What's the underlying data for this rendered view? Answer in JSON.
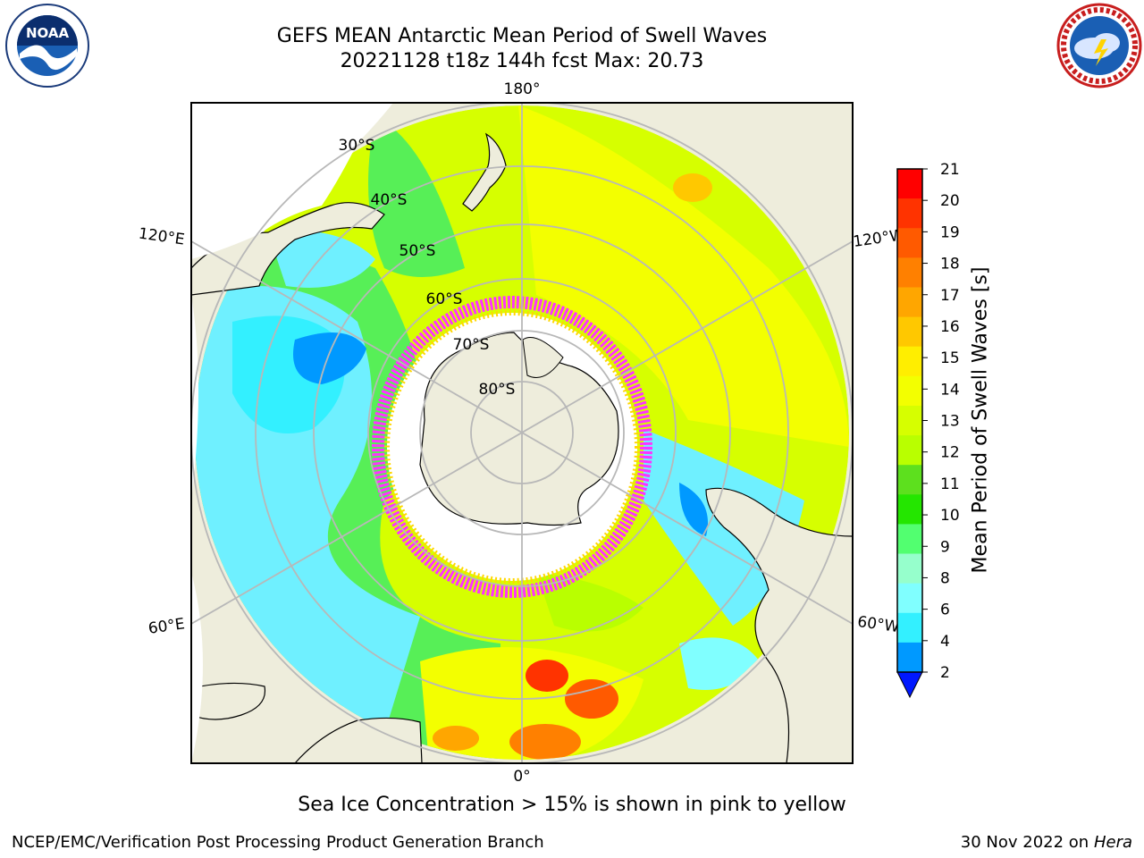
{
  "header": {
    "title_line1": "GEFS MEAN Antarctic Mean Period of Swell Waves",
    "title_line2": "20221128 t18z 144h fcst   Max: 20.73"
  },
  "logos": {
    "noaa": {
      "text": "NOAA",
      "ring_text": "NATIONAL OCEANIC AND ATMOSPHERIC ADMINISTRATION · U.S. DEPARTMENT OF COMMERCE"
    },
    "nws": {
      "ring_text": "NATIONAL WEATHER SERVICE"
    }
  },
  "map": {
    "projection": "south polar stereographic",
    "longitude_labels": {
      "top": "180°",
      "bottom": "0°",
      "left_upper": "120°E",
      "left_lower": "60°E",
      "right_upper": "120°W",
      "right_lower": "60°W"
    },
    "latitude_labels": [
      "30°S",
      "40°S",
      "50°S",
      "60°S",
      "70°S",
      "80°S"
    ],
    "colors": {
      "land": "#eeeddc",
      "ice_low": "#ff33ff",
      "ice_high": "#ffd700",
      "grid": "#b8b8b8"
    }
  },
  "colorbar": {
    "label": "Mean Period of Swell Waves [s]",
    "ticks": [
      "21",
      "20",
      "19",
      "18",
      "17",
      "16",
      "15",
      "14",
      "13",
      "12",
      "11",
      "10",
      "9",
      "8",
      "6",
      "4",
      "2"
    ],
    "colors_top_to_bottom": [
      "#ff0000",
      "#ff3300",
      "#ff5a00",
      "#ff8000",
      "#ffa600",
      "#ffc800",
      "#ffee00",
      "#f3ff00",
      "#d6ff00",
      "#b9ff00",
      "#5de01e",
      "#24e600",
      "#52ff70",
      "#96ffcc",
      "#80ffff",
      "#33f0ff",
      "#0099ff"
    ],
    "extend_color": "#0018ff"
  },
  "footer": {
    "note": "Sea Ice Concentration > 15% is shown in pink to yellow",
    "left": "NCEP/EMC/Verification Post Processing Product Generation Branch",
    "right_date": "30 Nov 2022 on",
    "right_machine": "Hera"
  }
}
